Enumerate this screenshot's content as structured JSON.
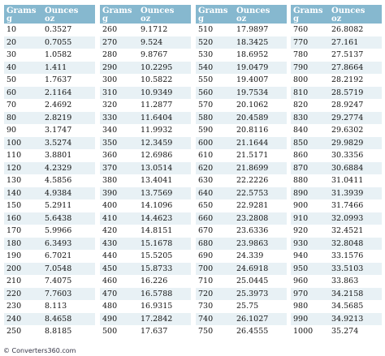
{
  "header": {
    "grams_label": "Grams",
    "grams_unit": "g",
    "ounces_label": "Ounces",
    "ounces_unit": "oz"
  },
  "blocks": [
    [
      [
        "10",
        "0.3527"
      ],
      [
        "20",
        "0.7055"
      ],
      [
        "30",
        "1.0582"
      ],
      [
        "40",
        "1.411"
      ],
      [
        "50",
        "1.7637"
      ],
      [
        "60",
        "2.1164"
      ],
      [
        "70",
        "2.4692"
      ],
      [
        "80",
        "2.8219"
      ],
      [
        "90",
        "3.1747"
      ],
      [
        "100",
        "3.5274"
      ],
      [
        "110",
        "3.8801"
      ],
      [
        "120",
        "4.2329"
      ],
      [
        "130",
        "4.5856"
      ],
      [
        "140",
        "4.9384"
      ],
      [
        "150",
        "5.2911"
      ],
      [
        "160",
        "5.6438"
      ],
      [
        "170",
        "5.9966"
      ],
      [
        "180",
        "6.3493"
      ],
      [
        "190",
        "6.7021"
      ],
      [
        "200",
        "7.0548"
      ],
      [
        "210",
        "7.4075"
      ],
      [
        "220",
        "7.7603"
      ],
      [
        "230",
        "8.113"
      ],
      [
        "240",
        "8.4658"
      ],
      [
        "250",
        "8.8185"
      ]
    ],
    [
      [
        "260",
        "9.1712"
      ],
      [
        "270",
        "9.524"
      ],
      [
        "280",
        "9.8767"
      ],
      [
        "290",
        "10.2295"
      ],
      [
        "300",
        "10.5822"
      ],
      [
        "310",
        "10.9349"
      ],
      [
        "320",
        "11.2877"
      ],
      [
        "330",
        "11.6404"
      ],
      [
        "340",
        "11.9932"
      ],
      [
        "350",
        "12.3459"
      ],
      [
        "360",
        "12.6986"
      ],
      [
        "370",
        "13.0514"
      ],
      [
        "380",
        "13.4041"
      ],
      [
        "390",
        "13.7569"
      ],
      [
        "400",
        "14.1096"
      ],
      [
        "410",
        "14.4623"
      ],
      [
        "420",
        "14.8151"
      ],
      [
        "430",
        "15.1678"
      ],
      [
        "440",
        "15.5205"
      ],
      [
        "450",
        "15.8733"
      ],
      [
        "460",
        "16.226"
      ],
      [
        "470",
        "16.5788"
      ],
      [
        "480",
        "16.9315"
      ],
      [
        "490",
        "17.2842"
      ],
      [
        "500",
        "17.637"
      ]
    ],
    [
      [
        "510",
        "17.9897"
      ],
      [
        "520",
        "18.3425"
      ],
      [
        "530",
        "18.6952"
      ],
      [
        "540",
        "19.0479"
      ],
      [
        "550",
        "19.4007"
      ],
      [
        "560",
        "19.7534"
      ],
      [
        "570",
        "20.1062"
      ],
      [
        "580",
        "20.4589"
      ],
      [
        "590",
        "20.8116"
      ],
      [
        "600",
        "21.1644"
      ],
      [
        "610",
        "21.5171"
      ],
      [
        "620",
        "21.8699"
      ],
      [
        "630",
        "22.2226"
      ],
      [
        "640",
        "22.5753"
      ],
      [
        "650",
        "22.9281"
      ],
      [
        "660",
        "23.2808"
      ],
      [
        "670",
        "23.6336"
      ],
      [
        "680",
        "23.9863"
      ],
      [
        "690",
        "24.339"
      ],
      [
        "700",
        "24.6918"
      ],
      [
        "710",
        "25.0445"
      ],
      [
        "720",
        "25.3973"
      ],
      [
        "730",
        "25.75"
      ],
      [
        "740",
        "26.1027"
      ],
      [
        "750",
        "26.4555"
      ]
    ],
    [
      [
        "760",
        "26.8082"
      ],
      [
        "770",
        "27.161"
      ],
      [
        "780",
        "27.5137"
      ],
      [
        "790",
        "27.8664"
      ],
      [
        "800",
        "28.2192"
      ],
      [
        "810",
        "28.5719"
      ],
      [
        "820",
        "28.9247"
      ],
      [
        "830",
        "29.2774"
      ],
      [
        "840",
        "29.6302"
      ],
      [
        "850",
        "29.9829"
      ],
      [
        "860",
        "30.3356"
      ],
      [
        "870",
        "30.6884"
      ],
      [
        "880",
        "31.0411"
      ],
      [
        "890",
        "31.3939"
      ],
      [
        "900",
        "31.7466"
      ],
      [
        "910",
        "32.0993"
      ],
      [
        "920",
        "32.4521"
      ],
      [
        "930",
        "32.8048"
      ],
      [
        "940",
        "33.1576"
      ],
      [
        "950",
        "33.5103"
      ],
      [
        "960",
        "33.863"
      ],
      [
        "970",
        "34.2158"
      ],
      [
        "980",
        "34.5685"
      ],
      [
        "990",
        "34.9213"
      ],
      [
        "1000",
        "35.274"
      ]
    ]
  ],
  "watermark": "© Converters360.com"
}
